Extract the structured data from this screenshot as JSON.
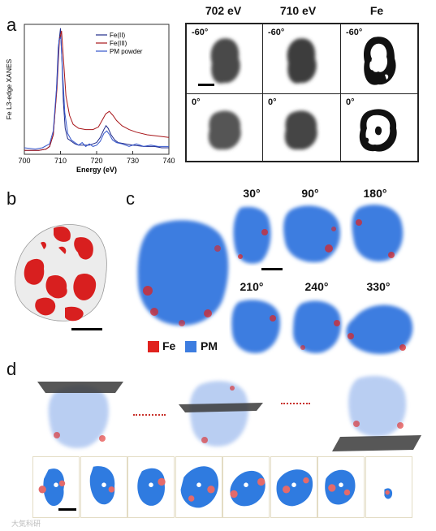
{
  "panels": {
    "a": "a",
    "b": "b",
    "c": "c",
    "d": "d"
  },
  "chart_data": {
    "type": "line",
    "xlabel": "Energy (eV)",
    "ylabel": "Fe L3-edge XANES",
    "xlim": [
      700,
      740
    ],
    "xticks": [
      "700",
      "710",
      "720",
      "730",
      "740"
    ],
    "legend": "top-right",
    "series": [
      {
        "name": "Fe(II)",
        "color": "#1f2a8a",
        "x": [
          700,
          704,
          706,
          707,
          708,
          708.8,
          709.4,
          710,
          710.4,
          710.8,
          711.3,
          712,
          713,
          714,
          715,
          716,
          718,
          720,
          721,
          722,
          722.6,
          723.2,
          724,
          725,
          726,
          728,
          730,
          733,
          736,
          738,
          740
        ],
        "y": [
          0.03,
          0.03,
          0.04,
          0.06,
          0.15,
          0.45,
          0.82,
          0.97,
          0.72,
          0.4,
          0.2,
          0.12,
          0.1,
          0.08,
          0.07,
          0.07,
          0.07,
          0.09,
          0.13,
          0.19,
          0.22,
          0.2,
          0.15,
          0.11,
          0.09,
          0.08,
          0.07,
          0.06,
          0.06,
          0.05,
          0.05
        ]
      },
      {
        "name": "Fe(III)",
        "color": "#a8161a",
        "x": [
          700,
          704,
          706,
          707,
          708,
          709,
          709.7,
          710.3,
          710.9,
          711.5,
          712.5,
          713.5,
          715,
          717,
          719,
          720.5,
          721.5,
          722.5,
          723.5,
          724.5,
          725.5,
          727,
          729,
          731,
          734,
          737,
          740
        ],
        "y": [
          0.03,
          0.03,
          0.04,
          0.06,
          0.15,
          0.5,
          0.88,
          0.95,
          0.7,
          0.45,
          0.3,
          0.23,
          0.2,
          0.19,
          0.19,
          0.21,
          0.26,
          0.31,
          0.33,
          0.3,
          0.26,
          0.22,
          0.19,
          0.17,
          0.15,
          0.14,
          0.13
        ]
      },
      {
        "name": "PM powder",
        "color": "#3355cc",
        "x": [
          700,
          703,
          705,
          707,
          708,
          709,
          709.6,
          710.1,
          710.6,
          711.2,
          712,
          713,
          714,
          715,
          716,
          717,
          718,
          719,
          720,
          721,
          722,
          722.8,
          723.6,
          724.4,
          725.5,
          727,
          729,
          731,
          733,
          735,
          737,
          740
        ],
        "y": [
          0.05,
          0.04,
          0.05,
          0.08,
          0.18,
          0.55,
          0.88,
          0.9,
          0.62,
          0.32,
          0.16,
          0.11,
          0.09,
          0.07,
          0.09,
          0.06,
          0.08,
          0.06,
          0.07,
          0.1,
          0.16,
          0.18,
          0.15,
          0.11,
          0.09,
          0.08,
          0.06,
          0.08,
          0.06,
          0.07,
          0.06,
          0.06
        ]
      }
    ]
  },
  "xanes_grid": {
    "col_headers": [
      "702 eV",
      "710 eV",
      "Fe"
    ],
    "row_labels": [
      "-60°",
      "0°"
    ]
  },
  "panel_c": {
    "angles": [
      "30°",
      "90°",
      "180°",
      "210°",
      "240°",
      "330°"
    ],
    "legend": [
      {
        "label": "Fe",
        "color": "#e0221e"
      },
      {
        "label": "PM",
        "color": "#3d7de0"
      }
    ]
  },
  "watermark": "大気科研"
}
